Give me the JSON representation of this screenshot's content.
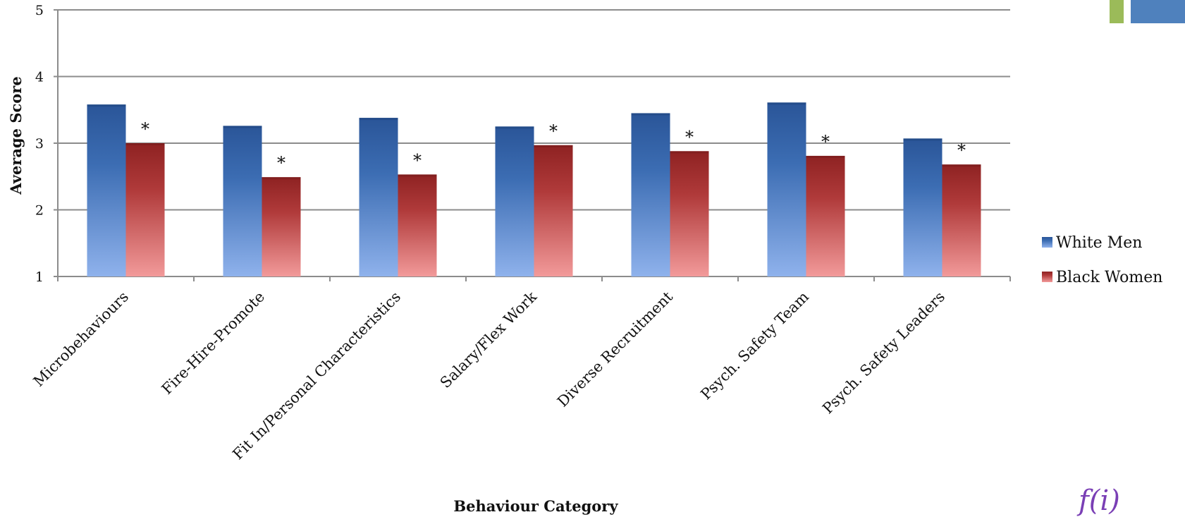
{
  "decor": {
    "accent_green": "#9bbb59",
    "accent_blue": "#4f81bd",
    "logo_text": "f(i)"
  },
  "chart_data": {
    "type": "bar",
    "title": "",
    "xlabel": "Behaviour Category",
    "ylabel": "Average Score",
    "ylim": [
      1,
      5
    ],
    "yticks": [
      1,
      2,
      3,
      4,
      5
    ],
    "grid": true,
    "legend_position": "right",
    "categories": [
      "Microbehaviours",
      "Fire-Hire-Promote",
      "Fit In/Personal Characteristics",
      "Salary/Flex Work",
      "Diverse Recruitment",
      "Psych. Safety Team",
      "Psych. Safety Leaders"
    ],
    "series": [
      {
        "name": "White Men",
        "color": "#2e5fa4",
        "values": [
          3.58,
          3.26,
          3.38,
          3.25,
          3.45,
          3.61,
          3.07
        ]
      },
      {
        "name": "Black Women",
        "color": "#b03a3a",
        "values": [
          3.0,
          2.49,
          2.53,
          2.97,
          2.88,
          2.81,
          2.68
        ]
      }
    ],
    "annotations": [
      "*",
      "*",
      "*",
      "*",
      "*",
      "*",
      "*"
    ]
  }
}
